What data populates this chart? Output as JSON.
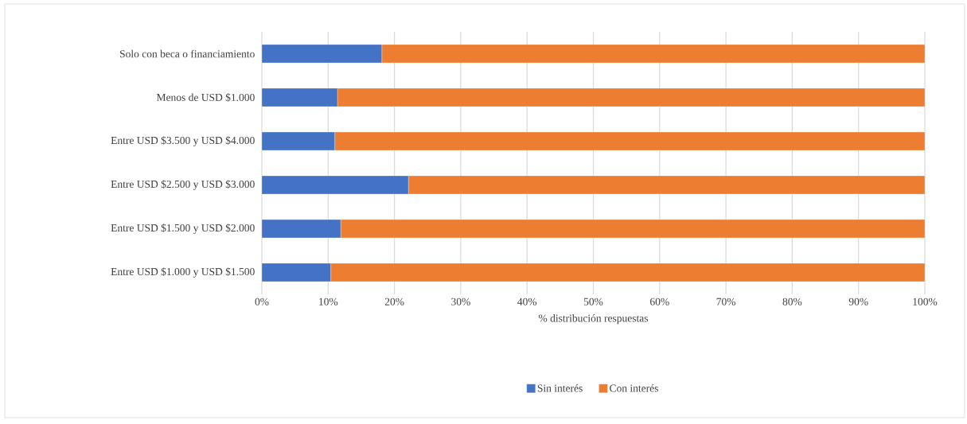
{
  "chart_data": {
    "type": "bar",
    "orientation": "horizontal",
    "stacked": true,
    "xlabel": "% distribución respuestas",
    "categories": [
      "Solo con beca o financiamiento",
      "Menos de USD $1.000",
      "Entre USD $3.500 y USD $4.000",
      "Entre USD $2.500 y USD $3.000",
      "Entre USD $1.500 y USD $2.000",
      "Entre USD $1.000 y USD $1.500"
    ],
    "series": [
      {
        "name": "Sin interés",
        "color": "#4472c4",
        "values": [
          18.1,
          11.4,
          11.0,
          22.1,
          11.9,
          10.4
        ]
      },
      {
        "name": "Con interés",
        "color": "#ed7d31",
        "values": [
          81.9,
          88.6,
          89.0,
          77.9,
          88.1,
          89.6
        ]
      }
    ],
    "xlim": [
      0,
      100
    ],
    "xticks": [
      {
        "value": 0,
        "label": "0%"
      },
      {
        "value": 10,
        "label": "10%"
      },
      {
        "value": 20,
        "label": "20%"
      },
      {
        "value": 30,
        "label": "30%"
      },
      {
        "value": 40,
        "label": "40%"
      },
      {
        "value": 50,
        "label": "50%"
      },
      {
        "value": 60,
        "label": "60%"
      },
      {
        "value": 70,
        "label": "70%"
      },
      {
        "value": 80,
        "label": "80%"
      },
      {
        "value": 90,
        "label": "90%"
      },
      {
        "value": 100,
        "label": "100%"
      }
    ],
    "grid": "x",
    "legend": "bottom"
  }
}
